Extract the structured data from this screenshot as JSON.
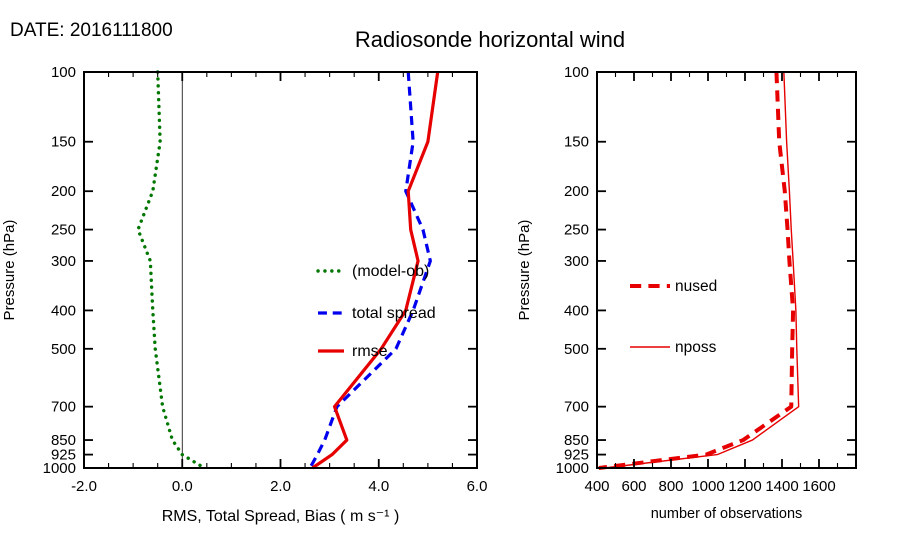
{
  "header": {
    "date_label": "DATE: 2016111800",
    "title": "Radiosonde horizontal wind"
  },
  "colors": {
    "bias_green": "#007700",
    "spread_blue": "#0000ee",
    "rmse_red": "#e60000",
    "obs_red": "#e60000",
    "axis_black": "#000000"
  },
  "chart_data": [
    {
      "type": "line",
      "panel": "left",
      "xlabel": "RMS, Total Spread, Bias ( m s⁻¹ )",
      "ylabel": "Pressure (hPa)",
      "xlim": [
        -2.0,
        6.0
      ],
      "xticks": [
        -2.0,
        0.0,
        2.0,
        4.0,
        6.0
      ],
      "xtick_labels": [
        "-2.0",
        "0.0",
        "2.0",
        "4.0",
        "6.0"
      ],
      "minor_x_step": 0.5,
      "yscale": "log",
      "ylim": [
        100,
        1000
      ],
      "yticks": [
        100,
        150,
        200,
        250,
        300,
        400,
        500,
        700,
        850,
        925,
        1000
      ],
      "ytick_labels": [
        "100",
        "150",
        "200",
        "250",
        "300",
        "400",
        "500",
        "700",
        "850",
        "925",
        "1000"
      ],
      "zero_line": true,
      "legend_position": "inside-right",
      "pressures": [
        100,
        150,
        200,
        250,
        300,
        400,
        500,
        700,
        850,
        925,
        1000
      ],
      "series": [
        {
          "name": "(model-ob)",
          "color": "#007700",
          "style": "dotted",
          "width": 3.4,
          "values": [
            -0.5,
            -0.45,
            -0.6,
            -0.9,
            -0.65,
            -0.6,
            -0.55,
            -0.4,
            -0.2,
            0.0,
            0.45
          ]
        },
        {
          "name": "total spread",
          "color": "#0000ee",
          "style": "dashed",
          "width": 3.2,
          "values": [
            4.6,
            4.7,
            4.55,
            4.9,
            5.05,
            4.7,
            4.35,
            3.15,
            2.9,
            2.75,
            2.6
          ]
        },
        {
          "name": "rmse",
          "color": "#e60000",
          "style": "solid",
          "width": 3.2,
          "values": [
            5.2,
            5.0,
            4.6,
            4.65,
            4.8,
            4.55,
            4.05,
            3.1,
            3.35,
            3.05,
            2.65
          ]
        }
      ]
    },
    {
      "type": "line",
      "panel": "right",
      "xlabel": "number of observations",
      "ylabel": "Pressure (hPa)",
      "xlim": [
        400,
        1800
      ],
      "xticks": [
        400,
        600,
        800,
        1000,
        1200,
        1400,
        1600
      ],
      "xtick_labels": [
        "400",
        "600",
        "800",
        "1000",
        "1200",
        "1400",
        "1600"
      ],
      "minor_x_step": 100,
      "yscale": "log",
      "ylim": [
        100,
        1000
      ],
      "yticks": [
        100,
        150,
        200,
        250,
        300,
        400,
        500,
        700,
        850,
        925,
        1000
      ],
      "ytick_labels": [
        "100",
        "150",
        "200",
        "250",
        "300",
        "400",
        "500",
        "700",
        "850",
        "925",
        "1000"
      ],
      "zero_line": false,
      "legend_position": "inside-left",
      "pressures": [
        100,
        150,
        200,
        250,
        300,
        400,
        500,
        700,
        850,
        925,
        1000
      ],
      "series": [
        {
          "name": "nused",
          "color": "#e60000",
          "style": "dashed",
          "width": 4,
          "values": [
            1370,
            1385,
            1415,
            1430,
            1440,
            1460,
            1455,
            1450,
            1190,
            990,
            410
          ]
        },
        {
          "name": "nposs",
          "color": "#e60000",
          "style": "solid",
          "width": 1.4,
          "values": [
            1410,
            1425,
            1440,
            1450,
            1460,
            1475,
            1480,
            1490,
            1240,
            1050,
            440
          ]
        }
      ]
    }
  ]
}
